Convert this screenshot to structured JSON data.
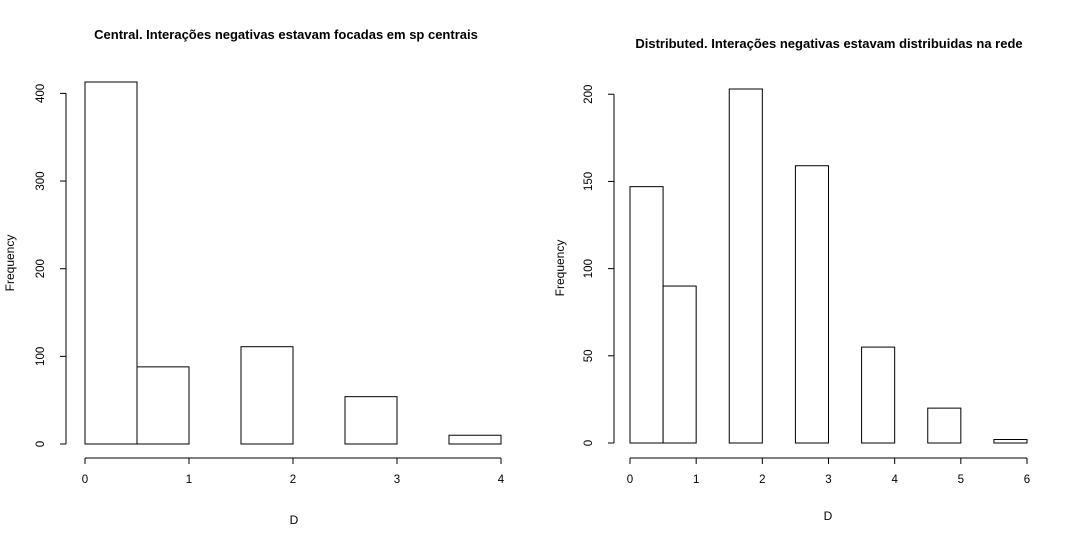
{
  "chart_data": [
    {
      "type": "bar",
      "title": "Central. Interações negativas estavam focadas em sp centrais",
      "xlabel": "D",
      "ylabel": "Frequency",
      "bins": [
        [
          0,
          0.5
        ],
        [
          0.5,
          1
        ],
        [
          1,
          1.5
        ],
        [
          1.5,
          2
        ],
        [
          2,
          2.5
        ],
        [
          2.5,
          3
        ],
        [
          3,
          3.5
        ],
        [
          3.5,
          4
        ]
      ],
      "values": [
        413,
        88,
        0,
        111,
        0,
        54,
        0,
        10
      ],
      "xticks": [
        0,
        1,
        2,
        3,
        4
      ],
      "yticks": [
        0,
        100,
        200,
        300,
        400
      ],
      "xlim": [
        0,
        4
      ],
      "ylim": [
        0,
        413
      ],
      "grid": false,
      "bar_fill": "#ffffff",
      "stroke": "#000000"
    },
    {
      "type": "bar",
      "title": "Distributed. Interações negativas estavam distribuidas na rede",
      "xlabel": "D",
      "ylabel": "Frequency",
      "bins": [
        [
          0,
          0.5
        ],
        [
          0.5,
          1
        ],
        [
          1,
          1.5
        ],
        [
          1.5,
          2
        ],
        [
          2,
          2.5
        ],
        [
          2.5,
          3
        ],
        [
          3,
          3.5
        ],
        [
          3.5,
          4
        ],
        [
          4,
          4.5
        ],
        [
          4.5,
          5
        ],
        [
          5,
          5.5
        ],
        [
          5.5,
          6
        ]
      ],
      "values": [
        147,
        90,
        0,
        203,
        0,
        159,
        0,
        55,
        0,
        20,
        0,
        2
      ],
      "xticks": [
        0,
        1,
        2,
        3,
        4,
        5,
        6
      ],
      "yticks": [
        0,
        50,
        100,
        150,
        200
      ],
      "xlim": [
        0,
        6
      ],
      "ylim": [
        0,
        203
      ],
      "grid": false,
      "bar_fill": "#ffffff",
      "stroke": "#000000"
    }
  ]
}
